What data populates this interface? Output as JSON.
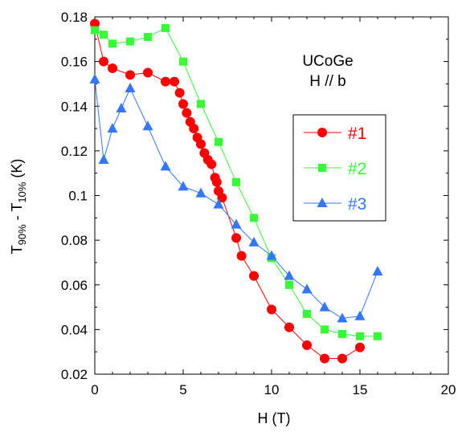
{
  "chart_data": {
    "type": "line",
    "xlabel": "H  (T)",
    "ylabel_parts": {
      "base1": "T",
      "sub1": "90%",
      "mid": " - T",
      "sub2": "10%",
      "end": "  (K)"
    },
    "xlim": [
      0,
      20
    ],
    "ylim": [
      0.02,
      0.18
    ],
    "xticks": [
      "0",
      "5",
      "10",
      "15",
      "20"
    ],
    "yticks": [
      "0.02",
      "0.04",
      "0.06",
      "0.08",
      "0.1",
      "0.12",
      "0.14",
      "0.16",
      "0.18"
    ],
    "annotation": [
      "UCoGe",
      "H // b"
    ],
    "legend_position": "right-middle",
    "grid": false,
    "series": [
      {
        "name": "#1",
        "color": "#ff0000",
        "marker": "circle",
        "points": [
          [
            0,
            0.177
          ],
          [
            0.5,
            0.16
          ],
          [
            1,
            0.157
          ],
          [
            2,
            0.154
          ],
          [
            3,
            0.155
          ],
          [
            4,
            0.151
          ],
          [
            4.5,
            0.151
          ],
          [
            4.8,
            0.146
          ],
          [
            5,
            0.141
          ],
          [
            5.2,
            0.137
          ],
          [
            5.4,
            0.133
          ],
          [
            5.6,
            0.13
          ],
          [
            5.8,
            0.126
          ],
          [
            6,
            0.123
          ],
          [
            6.2,
            0.119
          ],
          [
            6.4,
            0.116
          ],
          [
            6.6,
            0.114
          ],
          [
            6.8,
            0.108
          ],
          [
            6.9,
            0.106
          ],
          [
            7,
            0.102
          ],
          [
            7.2,
            0.099
          ],
          [
            8,
            0.081
          ],
          [
            8.3,
            0.073
          ],
          [
            9,
            0.064
          ],
          [
            10,
            0.049
          ],
          [
            11,
            0.041
          ],
          [
            12,
            0.033
          ],
          [
            13,
            0.027
          ],
          [
            14,
            0.027
          ],
          [
            15,
            0.032
          ]
        ]
      },
      {
        "name": "#2",
        "color": "#33ff33",
        "marker": "square",
        "points": [
          [
            0,
            0.174
          ],
          [
            0.5,
            0.172
          ],
          [
            1,
            0.168
          ],
          [
            2,
            0.169
          ],
          [
            3,
            0.171
          ],
          [
            4,
            0.175
          ],
          [
            5,
            0.16
          ],
          [
            6,
            0.141
          ],
          [
            7,
            0.124
          ],
          [
            8,
            0.106
          ],
          [
            9,
            0.09
          ],
          [
            10,
            0.072
          ],
          [
            11,
            0.06
          ],
          [
            12,
            0.047
          ],
          [
            13,
            0.04
          ],
          [
            14,
            0.038
          ],
          [
            15,
            0.037
          ],
          [
            16,
            0.037
          ]
        ]
      },
      {
        "name": "#3",
        "color": "#3377ff",
        "marker": "triangle",
        "points": [
          [
            0,
            0.152
          ],
          [
            0.5,
            0.116
          ],
          [
            1,
            0.13
          ],
          [
            1.5,
            0.139
          ],
          [
            2,
            0.148
          ],
          [
            3,
            0.131
          ],
          [
            4,
            0.113
          ],
          [
            5,
            0.104
          ],
          [
            6,
            0.101
          ],
          [
            7,
            0.096
          ],
          [
            8,
            0.087
          ],
          [
            9,
            0.079
          ],
          [
            10,
            0.073
          ],
          [
            11,
            0.064
          ],
          [
            12,
            0.058
          ],
          [
            13,
            0.05
          ],
          [
            14,
            0.045
          ],
          [
            15,
            0.046
          ],
          [
            16,
            0.066
          ]
        ]
      }
    ]
  }
}
